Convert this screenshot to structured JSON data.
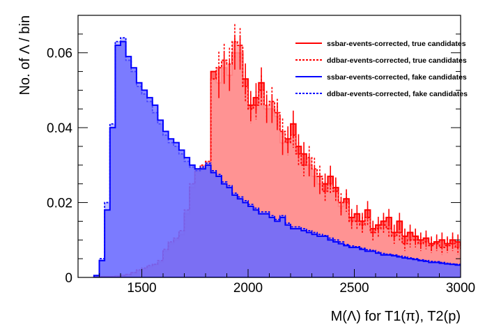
{
  "chart_data": {
    "type": "histogram",
    "xlabel": "M(Λ) for T1(π), T2(p)",
    "ylabel": "No. of Λ / bin",
    "xlim": [
      1200,
      3000
    ],
    "ylim": [
      0,
      0.07
    ],
    "x_ticks": [
      1500,
      2000,
      2500,
      3000
    ],
    "x_tick_labels": [
      "1500",
      "2000",
      "2500",
      "3000"
    ],
    "y_ticks": [
      0,
      0.02,
      0.04,
      0.06
    ],
    "y_tick_labels": [
      "0",
      "0.02",
      "0.04",
      "0.06"
    ],
    "bin_width": 25,
    "bin_edges_start": 1275,
    "legend_position": "top-right",
    "grid": false,
    "series": [
      {
        "name": "ssbar-events-corrected, true candidates",
        "color": "#ff0000",
        "fill": "#ff6a6a",
        "style": "solid",
        "values": [
          0.0002,
          0.0002,
          0.0002,
          0.0002,
          0.0003,
          0.0005,
          0.0007,
          0.0012,
          0.0018,
          0.0022,
          0.0028,
          0.0034,
          0.004,
          0.007,
          0.009,
          0.01,
          0.0115,
          0.017,
          0.024,
          0.028,
          0.029,
          0.03,
          0.055,
          0.052,
          0.056,
          0.054,
          0.06,
          0.06,
          0.053,
          0.046,
          0.048,
          0.052,
          0.045,
          0.045,
          0.043,
          0.036,
          0.037,
          0.041,
          0.035,
          0.033,
          0.03,
          0.027,
          0.025,
          0.025,
          0.027,
          0.024,
          0.019,
          0.021,
          0.016,
          0.017,
          0.015,
          0.018,
          0.013,
          0.014,
          0.015,
          0.016,
          0.012,
          0.015,
          0.011,
          0.012,
          0.011,
          0.01,
          0.0105,
          0.009,
          0.0095,
          0.01,
          0.009,
          0.01,
          0.0095,
          0.0085,
          0.011,
          0.0085
        ]
      },
      {
        "name": "ddbar-events-corrected, true candidates",
        "color": "#ff0000",
        "fill": "#ff9a9a",
        "style": "dotted",
        "values": [
          0.0002,
          0.0002,
          0.0002,
          0.0002,
          0.0003,
          0.0005,
          0.0008,
          0.0013,
          0.002,
          0.0025,
          0.0032,
          0.0035,
          0.0045,
          0.0075,
          0.0095,
          0.0105,
          0.0125,
          0.018,
          0.025,
          0.029,
          0.03,
          0.031,
          0.053,
          0.056,
          0.058,
          0.057,
          0.063,
          0.062,
          0.051,
          0.045,
          0.046,
          0.05,
          0.046,
          0.047,
          0.044,
          0.039,
          0.036,
          0.038,
          0.033,
          0.03,
          0.032,
          0.029,
          0.027,
          0.023,
          0.025,
          0.023,
          0.02,
          0.02,
          0.015,
          0.015,
          0.014,
          0.016,
          0.012,
          0.013,
          0.014,
          0.013,
          0.011,
          0.012,
          0.009,
          0.01,
          0.01,
          0.009,
          0.0095,
          0.0085,
          0.009,
          0.008,
          0.0085,
          0.009,
          0.008,
          0.0075,
          0.008,
          0.0075
        ]
      },
      {
        "name": "ssbar-events-corrected, fake candidates",
        "color": "#0000ff",
        "fill": "#6060ff",
        "style": "solid",
        "values": [
          0.0005,
          0.0045,
          0.018,
          0.04,
          0.062,
          0.063,
          0.059,
          0.056,
          0.052,
          0.05,
          0.048,
          0.046,
          0.042,
          0.039,
          0.037,
          0.036,
          0.034,
          0.032,
          0.03,
          0.029,
          0.029,
          0.03,
          0.028,
          0.027,
          0.025,
          0.024,
          0.022,
          0.021,
          0.02,
          0.019,
          0.018,
          0.017,
          0.017,
          0.016,
          0.015,
          0.016,
          0.014,
          0.013,
          0.013,
          0.0125,
          0.012,
          0.0115,
          0.011,
          0.011,
          0.01,
          0.0095,
          0.009,
          0.0085,
          0.008,
          0.008,
          0.0075,
          0.007,
          0.007,
          0.0065,
          0.006,
          0.006,
          0.0058,
          0.0055,
          0.0052,
          0.005,
          0.0048,
          0.0045,
          0.0043,
          0.004,
          0.004,
          0.0038,
          0.0036,
          0.0035,
          0.0033,
          0.0032,
          0.003,
          0.0028
        ]
      },
      {
        "name": "ddbar-events-corrected, fake candidates",
        "color": "#0000ff",
        "fill": "#9898ff",
        "style": "dotted",
        "values": [
          0.0005,
          0.005,
          0.02,
          0.041,
          0.063,
          0.064,
          0.058,
          0.055,
          0.051,
          0.049,
          0.047,
          0.044,
          0.041,
          0.038,
          0.036,
          0.035,
          0.033,
          0.031,
          0.0295,
          0.0285,
          0.0295,
          0.0305,
          0.0285,
          0.0275,
          0.0255,
          0.0245,
          0.0225,
          0.0215,
          0.0205,
          0.0195,
          0.0185,
          0.0175,
          0.0175,
          0.0165,
          0.0155,
          0.0165,
          0.0145,
          0.0135,
          0.0135,
          0.013,
          0.0125,
          0.012,
          0.0115,
          0.0112,
          0.0105,
          0.01,
          0.0095,
          0.0088,
          0.0084,
          0.0082,
          0.0078,
          0.0074,
          0.0072,
          0.0068,
          0.0064,
          0.0062,
          0.006,
          0.0057,
          0.0055,
          0.0052,
          0.005,
          0.0047,
          0.0045,
          0.0043,
          0.0042,
          0.004,
          0.0038,
          0.0036,
          0.0035,
          0.0034,
          0.0032,
          0.003
        ]
      }
    ]
  }
}
